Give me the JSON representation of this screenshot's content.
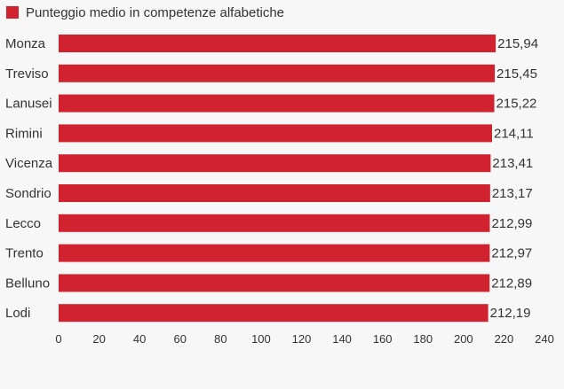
{
  "chart_data": {
    "type": "bar",
    "orientation": "horizontal",
    "title": "",
    "xlabel": "",
    "ylabel": "",
    "legend": {
      "placement": "top-left",
      "entries": [
        "Punteggio medio in competenze alfabetiche"
      ]
    },
    "series": [
      {
        "name": "Punteggio medio in competenze alfabetiche",
        "color": "#d1232f",
        "values": [
          215.94,
          215.45,
          215.22,
          214.11,
          213.41,
          213.17,
          212.99,
          212.97,
          212.89,
          212.19
        ]
      }
    ],
    "categories": [
      "Monza",
      "Treviso",
      "Lanusei",
      "Rimini",
      "Vicenza",
      "Sondrio",
      "Lecco",
      "Trento",
      "Belluno",
      "Lodi"
    ],
    "value_labels": [
      "215,94",
      "215,45",
      "215,22",
      "214,11",
      "213,41",
      "213,17",
      "212,99",
      "212,97",
      "212,89",
      "212,19"
    ],
    "xlim": [
      0,
      240
    ],
    "xticks": [
      0,
      20,
      40,
      60,
      80,
      100,
      120,
      140,
      160,
      180,
      200,
      220,
      240
    ],
    "grid": false
  }
}
